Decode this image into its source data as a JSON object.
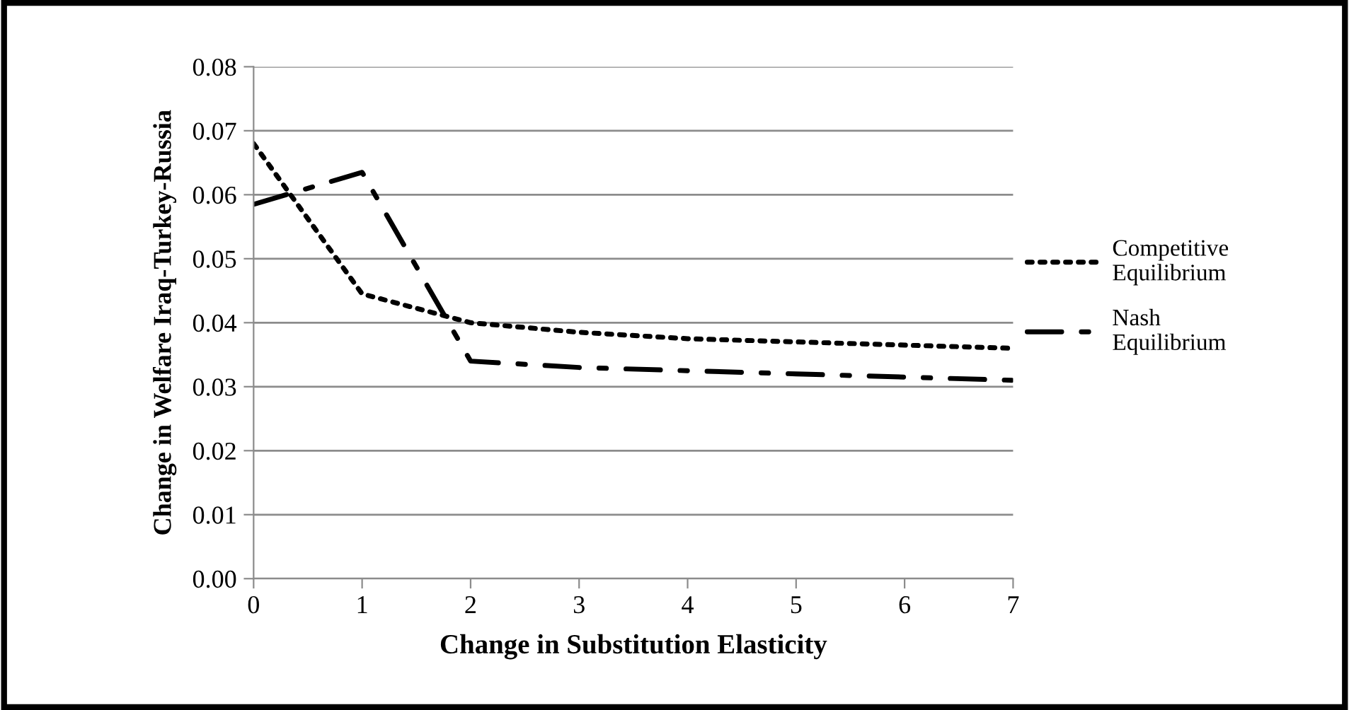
{
  "chart_data": {
    "type": "line",
    "xlabel": "Change in Substitution Elasticity",
    "ylabel": "Change in Welfare Iraq-Turkey-Russia",
    "x": [
      0,
      1,
      2,
      3,
      4,
      5,
      6,
      7
    ],
    "series": [
      {
        "name": "Competitive Equilibrium",
        "color": "#000000",
        "line_style": "dotted",
        "values": [
          0.068,
          0.0445,
          0.04,
          0.0385,
          0.0375,
          0.037,
          0.0365,
          0.036
        ]
      },
      {
        "name": "Nash Equilibrium",
        "color": "#000000",
        "line_style": "dashdot",
        "values": [
          0.0585,
          0.0635,
          0.034,
          0.033,
          0.0325,
          0.032,
          0.0315,
          0.031
        ]
      }
    ],
    "xlim": [
      0,
      7
    ],
    "xticks": [
      0,
      1,
      2,
      3,
      4,
      5,
      6,
      7
    ],
    "ylim": [
      0,
      0.08
    ],
    "yticks": [
      {
        "value": 0,
        "label": "0.00"
      },
      {
        "value": 0.01,
        "label": "0.01"
      },
      {
        "value": 0.02,
        "label": "0.02"
      },
      {
        "value": 0.03,
        "label": "0.03"
      },
      {
        "value": 0.04,
        "label": "0.04"
      },
      {
        "value": 0.05,
        "label": "0.05"
      },
      {
        "value": 0.06,
        "label": "0.06"
      },
      {
        "value": 0.07,
        "label": "0.07"
      },
      {
        "value": 0.08,
        "label": "0.08"
      }
    ],
    "grid": "y",
    "legend": "right",
    "marker": "none"
  }
}
